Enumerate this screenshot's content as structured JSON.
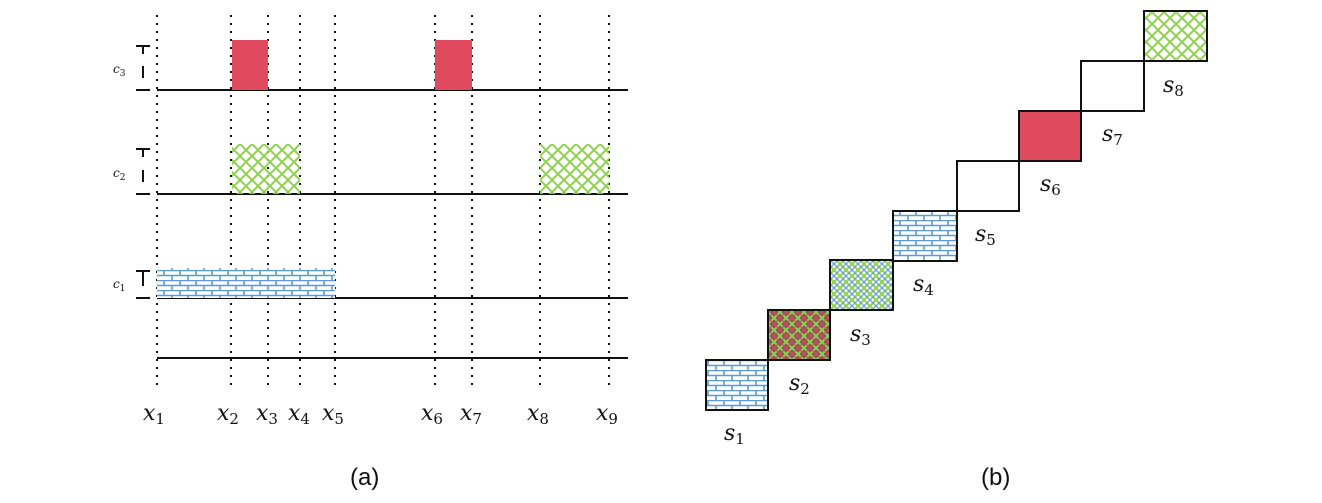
{
  "panel_a": {
    "caption": "(a)",
    "x_labels": [
      {
        "base": "x",
        "sub": "1"
      },
      {
        "base": "x",
        "sub": "2"
      },
      {
        "base": "x",
        "sub": "3"
      },
      {
        "base": "x",
        "sub": "4"
      },
      {
        "base": "x",
        "sub": "5"
      },
      {
        "base": "x",
        "sub": "6"
      },
      {
        "base": "x",
        "sub": "7"
      },
      {
        "base": "x",
        "sub": "8"
      },
      {
        "base": "x",
        "sub": "9"
      }
    ],
    "rows": [
      {
        "base": "c",
        "sub": "3"
      },
      {
        "base": "c",
        "sub": "2"
      },
      {
        "base": "c",
        "sub": "1"
      }
    ]
  },
  "panel_b": {
    "caption": "(b)",
    "steps": [
      {
        "base": "s",
        "sub": "1",
        "pattern": "brick"
      },
      {
        "base": "s",
        "sub": "2",
        "pattern": "cross-red"
      },
      {
        "base": "s",
        "sub": "3",
        "pattern": "cross-green"
      },
      {
        "base": "s",
        "sub": "4",
        "pattern": "brick"
      },
      {
        "base": "s",
        "sub": "5",
        "pattern": "empty"
      },
      {
        "base": "s",
        "sub": "6",
        "pattern": "solid-red"
      },
      {
        "base": "s",
        "sub": "7",
        "pattern": "empty"
      },
      {
        "base": "s",
        "sub": "8",
        "pattern": "hatch-green"
      }
    ]
  },
  "colors": {
    "red": "#e04a5e",
    "green": "#8fd14f",
    "blue": "#5b9bd5",
    "dark_fill": "#7a5a55"
  }
}
